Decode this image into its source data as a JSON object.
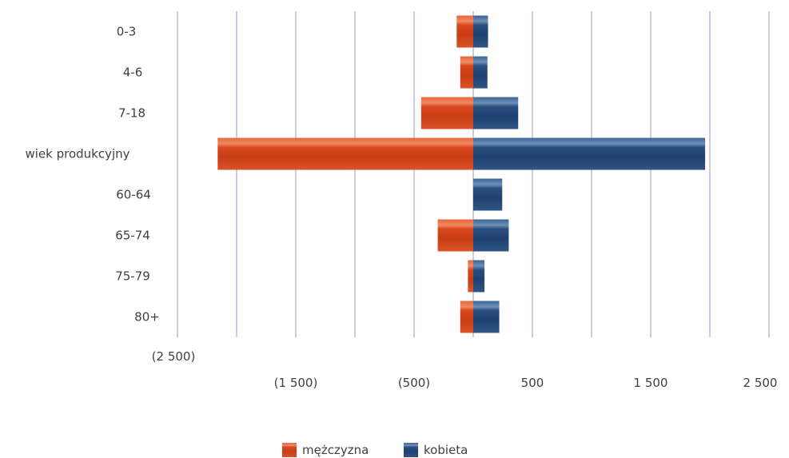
{
  "chart_data": {
    "type": "bar",
    "orientation": "horizontal",
    "categories": [
      "0-3",
      "4-6",
      "7-18",
      "wiek produkcyjny",
      "60-64",
      "65-74",
      "75-79",
      "80+"
    ],
    "series": [
      {
        "name": "mężczyzna",
        "color": "#d9471e",
        "values": [
          -140,
          -110,
          -440,
          -2160,
          0,
          -300,
          -45,
          -110
        ]
      },
      {
        "name": "kobieta",
        "color": "#2a507f",
        "values": [
          125,
          120,
          380,
          1960,
          245,
          300,
          95,
          220
        ]
      }
    ],
    "xlim": [
      -2500,
      2500
    ],
    "x_tick_labels": [
      "(2 500)",
      "(1 500)",
      "(500)",
      "500",
      "1 500",
      "2 500"
    ],
    "grid": true,
    "legend": "bottom",
    "title": "",
    "xlabel": "",
    "ylabel": ""
  }
}
